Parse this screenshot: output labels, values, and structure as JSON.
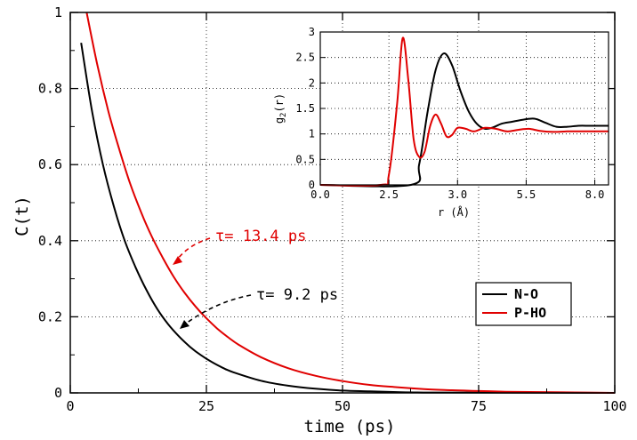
{
  "chart_data": [
    {
      "type": "line",
      "role": "main",
      "xlabel": "time (ps)",
      "ylabel": "C(t)",
      "xlim": [
        0,
        100
      ],
      "ylim": [
        0,
        1
      ],
      "xticks": [
        0,
        25,
        50,
        75,
        100
      ],
      "yticks": [
        0,
        0.2,
        0.4,
        0.6,
        0.8,
        1
      ],
      "xtick_labels": [
        "0",
        "25",
        "50",
        "75",
        "100"
      ],
      "ytick_labels": [
        "0",
        "0.2",
        "0.4",
        "0.6",
        "0.8",
        "1"
      ],
      "grid": true,
      "legend_position": "lower-right",
      "series": [
        {
          "name": "N-O",
          "color": "#000000",
          "x": [
            2,
            4,
            6,
            8,
            10,
            12,
            14,
            16,
            18,
            20,
            22,
            24,
            26,
            28,
            30,
            35,
            40,
            45,
            50,
            55,
            60,
            65
          ],
          "y": [
            0.92,
            0.74,
            0.6,
            0.49,
            0.4,
            0.33,
            0.27,
            0.22,
            0.18,
            0.148,
            0.121,
            0.099,
            0.081,
            0.066,
            0.054,
            0.032,
            0.019,
            0.011,
            0.006,
            0.004,
            0.002,
            0.001
          ]
        },
        {
          "name": "P-HO",
          "color": "#e00000",
          "x": [
            3,
            5,
            7,
            9,
            11,
            13,
            15,
            17,
            19,
            21,
            23,
            25,
            27,
            29,
            31,
            35,
            40,
            45,
            50,
            55,
            60,
            65,
            70,
            75,
            80
          ],
          "y": [
            1.0,
            0.86,
            0.74,
            0.64,
            0.55,
            0.475,
            0.41,
            0.355,
            0.305,
            0.263,
            0.227,
            0.196,
            0.169,
            0.146,
            0.126,
            0.094,
            0.065,
            0.045,
            0.031,
            0.021,
            0.015,
            0.01,
            0.007,
            0.005,
            0.003
          ]
        }
      ],
      "annotations": [
        {
          "text": "τ= 13.4 ps",
          "color": "#e00000",
          "arrow_to": [
            19,
            0.34
          ]
        },
        {
          "text": "τ= 9.2 ps",
          "color": "#000000",
          "arrow_to": [
            20,
            0.17
          ]
        }
      ]
    },
    {
      "type": "line",
      "role": "inset",
      "xlabel": "r (Å)",
      "ylabel_main": "g",
      "ylabel_sub": "2",
      "ylabel_tail": "(r)",
      "xlim": [
        0,
        10.5
      ],
      "ylim": [
        0,
        3
      ],
      "xticks": [
        0.5,
        3.0,
        5.5,
        8.0
      ],
      "xtick_labels": [
        "0.0",
        "2.5",
        "3.0",
        "5.5",
        "8.0"
      ],
      "xtick_label_positions_data": [
        0,
        2.5,
        5,
        7.5,
        10
      ],
      "yticks": [
        0,
        0.5,
        1,
        1.5,
        2,
        2.5,
        3
      ],
      "ytick_labels": [
        "0",
        "0.5",
        "1",
        "1.5",
        "2",
        "2.5",
        "3"
      ],
      "grid": true,
      "series": [
        {
          "name": "N-O",
          "color": "#000000",
          "x": [
            0,
            3.3,
            3.6,
            3.9,
            4.2,
            4.5,
            4.8,
            5.1,
            5.4,
            5.7,
            6.0,
            6.3,
            6.6,
            7.0,
            7.4,
            7.8,
            8.2,
            8.6,
            9.0,
            9.4,
            9.8,
            10.2,
            10.5
          ],
          "y": [
            0,
            0,
            0.4,
            1.4,
            2.25,
            2.58,
            2.35,
            1.85,
            1.45,
            1.2,
            1.1,
            1.13,
            1.2,
            1.24,
            1.28,
            1.3,
            1.22,
            1.14,
            1.14,
            1.16,
            1.16,
            1.16,
            1.16
          ]
        },
        {
          "name": "P-HO",
          "color": "#e00000",
          "x": [
            0,
            2.2,
            2.5,
            2.8,
            3.0,
            3.2,
            3.4,
            3.6,
            3.8,
            4.0,
            4.2,
            4.4,
            4.6,
            4.8,
            5.0,
            5.3,
            5.6,
            6.0,
            6.4,
            6.8,
            7.2,
            7.6,
            8.0,
            8.5,
            9.0,
            9.5,
            10.0,
            10.5
          ],
          "y": [
            0,
            0,
            0.2,
            1.6,
            2.88,
            2.1,
            0.9,
            0.55,
            0.65,
            1.15,
            1.38,
            1.2,
            0.95,
            0.98,
            1.12,
            1.1,
            1.05,
            1.12,
            1.1,
            1.05,
            1.08,
            1.1,
            1.06,
            1.04,
            1.05,
            1.05,
            1.05,
            1.05
          ]
        }
      ]
    }
  ],
  "legend": {
    "items": [
      {
        "label": "N-O",
        "color": "#000000"
      },
      {
        "label": "P-HO",
        "color": "#e00000"
      }
    ]
  }
}
